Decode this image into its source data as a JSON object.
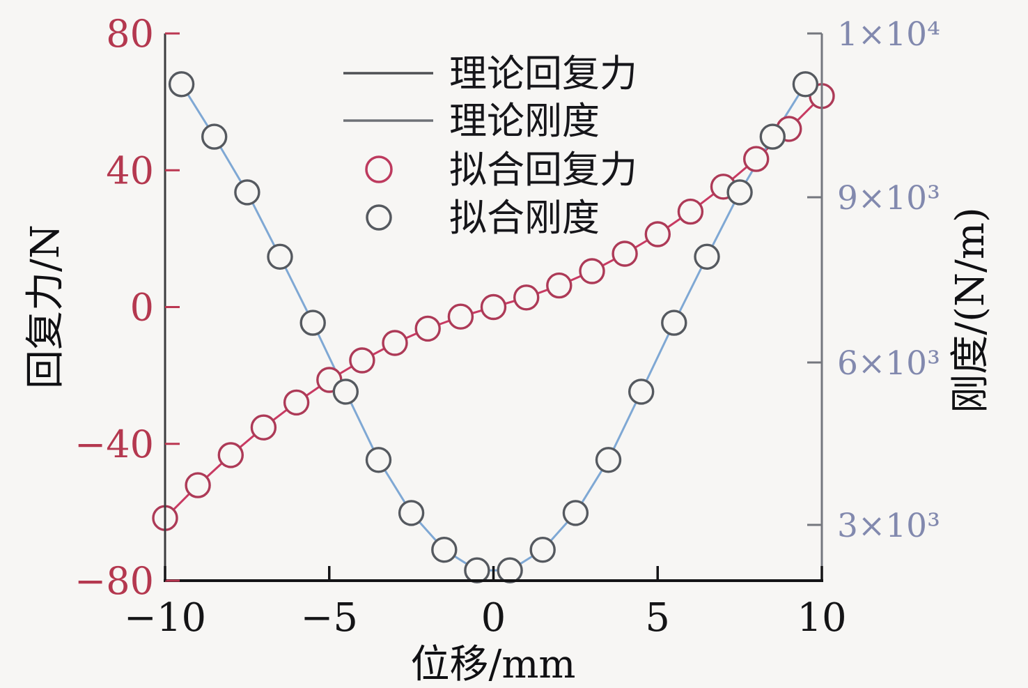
{
  "figure": {
    "background": "#f7f6f4",
    "frame": "two-value-axes box, no top spine"
  },
  "chart_data": {
    "type": "line",
    "title": "",
    "grid": false,
    "x_axis": {
      "label": "位移/mm",
      "range": [
        -10,
        10
      ],
      "tick_values": [
        -10,
        -5,
        0,
        5,
        10
      ],
      "tick_labels": [
        "−10",
        "−5",
        "0",
        "5",
        "10"
      ],
      "color": "#141416"
    },
    "y_axis_left": {
      "label": "回复力/N",
      "range": [
        -80,
        80
      ],
      "tick_values": [
        80,
        40,
        0,
        -40,
        -80
      ],
      "tick_labels": [
        "80",
        "40",
        "0",
        "−40",
        "−80"
      ],
      "color": "#b4384f"
    },
    "y_axis_right": {
      "label": "刚度/(N/m)",
      "tick_values": [
        10000,
        9000,
        6000,
        3000
      ],
      "tick_labels": [
        "1×10⁴",
        "9×10³",
        "6×10³",
        "3×10³"
      ],
      "color": "#8289ae"
    },
    "series": [
      {
        "name": "理论回复力",
        "kind": "line",
        "axis": "left",
        "color": "#c83a62",
        "x": [
          -10,
          -9,
          -8,
          -7,
          -6,
          -5,
          -4,
          -3,
          -2,
          -1,
          0,
          1,
          2,
          3,
          4,
          5,
          6,
          7,
          8,
          9,
          10
        ],
        "y": [
          -61.7,
          -52.1,
          -43.3,
          -35.2,
          -27.9,
          -21.3,
          -15.6,
          -10.5,
          -6.3,
          -2.8,
          0,
          2.8,
          6.3,
          10.5,
          15.6,
          21.3,
          27.9,
          35.2,
          43.3,
          52.1,
          61.7
        ]
      },
      {
        "name": "理论刚度",
        "kind": "line",
        "axis": "right",
        "color": "#7fa8d4",
        "x": [
          -9.5,
          -8.5,
          -7.5,
          -6.5,
          -5.5,
          -4.5,
          -3.5,
          -2.5,
          -1.5,
          -0.5,
          0.5,
          1.5,
          2.5,
          3.5,
          4.5,
          5.5,
          6.5,
          7.5,
          8.5,
          9.5
        ],
        "y": [
          9690,
          9370,
          9030,
          7920,
          6720,
          5460,
          4200,
          3220,
          2540,
          2160,
          2160,
          2540,
          3220,
          4200,
          5460,
          6720,
          7920,
          9030,
          9370,
          9690
        ]
      },
      {
        "name": "拟合回复力",
        "kind": "scatter",
        "axis": "left",
        "color": "#ad3a57",
        "x": [
          -10,
          -9,
          -8,
          -7,
          -6,
          -5,
          -4,
          -3,
          -2,
          -1,
          0,
          1,
          2,
          3,
          4,
          5,
          6,
          7,
          8,
          9,
          10
        ],
        "y": [
          -61.7,
          -52.1,
          -43.3,
          -35.2,
          -27.9,
          -21.3,
          -15.6,
          -10.5,
          -6.3,
          -2.8,
          0,
          2.8,
          6.3,
          10.5,
          15.6,
          21.3,
          27.9,
          35.2,
          43.3,
          52.1,
          61.7
        ]
      },
      {
        "name": "拟合刚度",
        "kind": "scatter",
        "axis": "right",
        "color": "#55595f",
        "x": [
          -9.5,
          -8.5,
          -7.5,
          -6.5,
          -5.5,
          -4.5,
          -3.5,
          -2.5,
          -1.5,
          -0.5,
          0.5,
          1.5,
          2.5,
          3.5,
          4.5,
          5.5,
          6.5,
          7.5,
          8.5,
          9.5
        ],
        "y": [
          9690,
          9370,
          9030,
          7920,
          6720,
          5460,
          4200,
          3220,
          2540,
          2160,
          2160,
          2540,
          3220,
          4200,
          5460,
          6720,
          7920,
          9030,
          9370,
          9690
        ]
      }
    ],
    "legend": {
      "position": "upper center-left, inside plot",
      "items": [
        {
          "label": "理论回复力",
          "marker": "line",
          "color": "#4f5054"
        },
        {
          "label": "理论刚度",
          "marker": "line",
          "color": "#6e7176"
        },
        {
          "label": "拟合回复力",
          "marker": "circle",
          "color": "#bd3a5e"
        },
        {
          "label": "拟合刚度",
          "marker": "circle",
          "color": "#55595f"
        }
      ]
    }
  }
}
